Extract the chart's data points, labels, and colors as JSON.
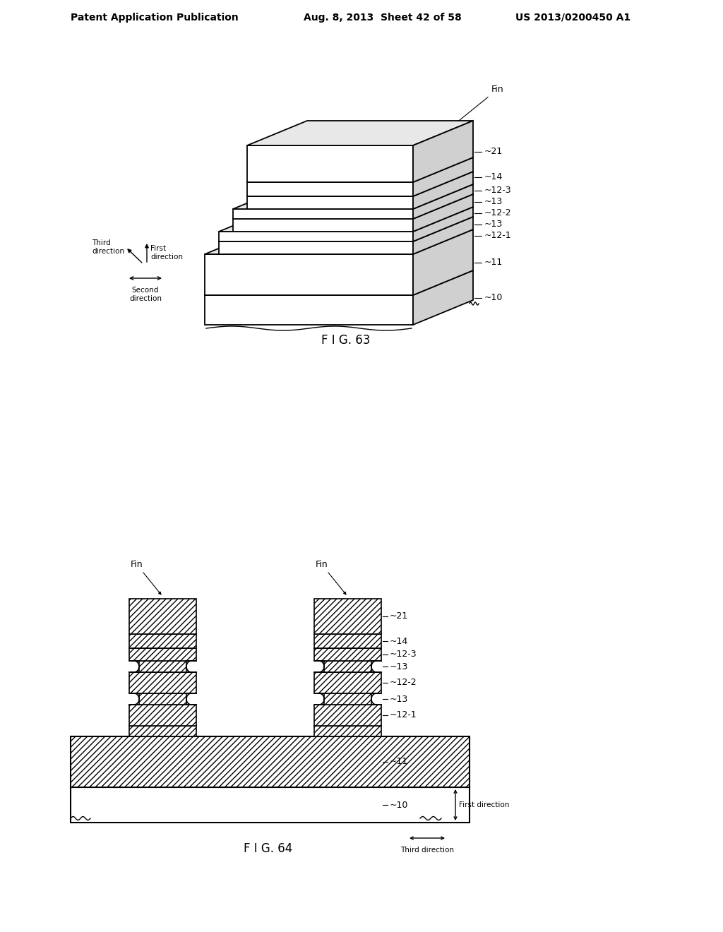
{
  "background_color": "#ffffff",
  "header_text_left": "Patent Application Publication",
  "header_text_mid": "Aug. 8, 2013  Sheet 42 of 58",
  "header_text_right": "US 2013/0200450 A1",
  "fig63_caption": "F I G. 63",
  "fig64_caption": "F I G. 64",
  "line_color": "#000000",
  "label_fontsize": 9,
  "caption_fontsize": 12,
  "header_fontsize": 10
}
